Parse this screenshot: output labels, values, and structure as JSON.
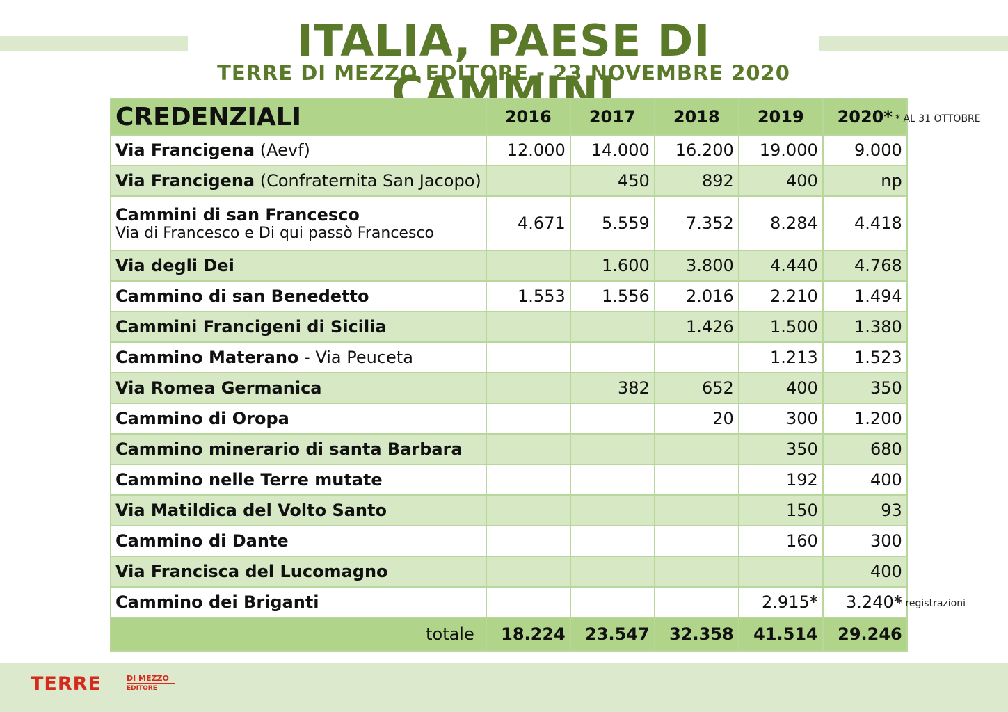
{
  "header": {
    "title": "ITALIA, PAESE DI CAMMINI",
    "subtitle": "TERRE DI MEZZO EDITORE - 23 NOVEMBRE 2020"
  },
  "table": {
    "heading": "CREDENZIALI",
    "years": [
      "2016",
      "2017",
      "2018",
      "2019",
      "2020*"
    ],
    "rows": [
      {
        "name": "Via Francigena",
        "suffix": " (Aevf)",
        "sub": "",
        "values": [
          "12.000",
          "14.000",
          "16.200",
          "19.000",
          "9.000"
        ]
      },
      {
        "name": "Via Francigena",
        "suffix": " (Confraternita San Jacopo)",
        "sub": "",
        "values": [
          "",
          "450",
          "892",
          "400",
          "np"
        ]
      },
      {
        "name": "Cammini di san Francesco",
        "suffix": "",
        "sub": "Via di Francesco e Di qui passò Francesco",
        "values": [
          "4.671",
          "5.559",
          "7.352",
          "8.284",
          "4.418"
        ]
      },
      {
        "name": "Via degli Dei",
        "suffix": "",
        "sub": "",
        "values": [
          "",
          "1.600",
          "3.800",
          "4.440",
          "4.768"
        ]
      },
      {
        "name": "Cammino di san Benedetto",
        "suffix": "",
        "sub": "",
        "values": [
          "1.553",
          "1.556",
          "2.016",
          "2.210",
          "1.494"
        ]
      },
      {
        "name": "Cammini Francigeni di Sicilia",
        "suffix": "",
        "sub": "",
        "values": [
          "",
          "",
          "1.426",
          "1.500",
          "1.380"
        ]
      },
      {
        "name": "Cammino Materano",
        "suffix": " - Via Peuceta",
        "sub": "",
        "values": [
          "",
          "",
          "",
          "1.213",
          "1.523"
        ]
      },
      {
        "name": "Via Romea Germanica",
        "suffix": "",
        "sub": "",
        "values": [
          "",
          "382",
          "652",
          "400",
          "350"
        ]
      },
      {
        "name": "Cammino di Oropa",
        "suffix": "",
        "sub": "",
        "values": [
          "",
          "",
          "20",
          "300",
          "1.200"
        ]
      },
      {
        "name": "Cammino minerario di santa Barbara",
        "suffix": "",
        "sub": "",
        "values": [
          "",
          "",
          "",
          "350",
          "680"
        ]
      },
      {
        "name": "Cammino nelle Terre mutate",
        "suffix": "",
        "sub": "",
        "values": [
          "",
          "",
          "",
          "192",
          "400"
        ]
      },
      {
        "name": "Via Matildica del Volto Santo",
        "suffix": "",
        "sub": "",
        "values": [
          "",
          "",
          "",
          "150",
          "93"
        ]
      },
      {
        "name": "Cammino di Dante",
        "suffix": "",
        "sub": "",
        "values": [
          "",
          "",
          "",
          "160",
          "300"
        ]
      },
      {
        "name": "Via Francisca del Lucomagno",
        "suffix": "",
        "sub": "",
        "values": [
          "",
          "",
          "",
          "",
          "400"
        ]
      },
      {
        "name": "Cammino dei Briganti",
        "suffix": "",
        "sub": "",
        "values": [
          "",
          "",
          "",
          "2.915*",
          "3.240*"
        ]
      }
    ],
    "total": {
      "label": "totale",
      "values": [
        "18.224",
        "23.547",
        "32.358",
        "41.514",
        "29.246"
      ]
    }
  },
  "notes": {
    "top": "* AL 31 OTTOBRE",
    "bottom": "* registrazioni"
  },
  "footer": {
    "logo_main": "TERRE",
    "logo_small1": "DI MEZZO",
    "logo_small2": "EDITORE"
  }
}
